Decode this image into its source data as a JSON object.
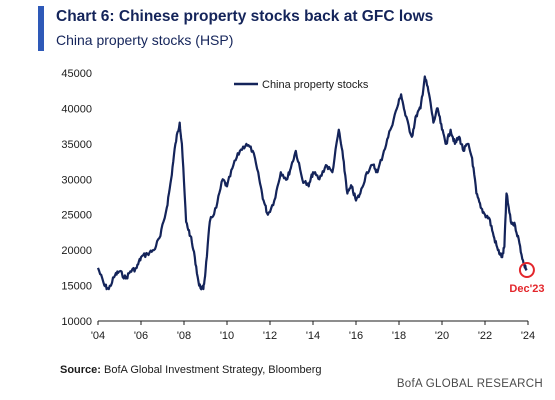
{
  "header": {
    "title": "Chart 6: Chinese property stocks back at GFC lows",
    "subtitle": "China property stocks (HSP)"
  },
  "source": {
    "label": "Source:",
    "text": "BofA Global Investment Strategy, Bloomberg"
  },
  "footer": {
    "brand": "BofA GLOBAL RESEARCH"
  },
  "colors": {
    "accent": "#2e59b8",
    "line": "#14245a",
    "annotation": "#e3262b"
  },
  "chart_data": {
    "type": "line",
    "title": "Chart 6: Chinese property stocks back at GFC lows",
    "subtitle": "China property stocks (HSP)",
    "xlabel": "",
    "ylabel": "",
    "x_tick_labels": [
      "'04",
      "'06",
      "'08",
      "'10",
      "'12",
      "'14",
      "'16",
      "'18",
      "'20",
      "'22",
      "'24"
    ],
    "x_tick_years": [
      2004,
      2006,
      2008,
      2010,
      2012,
      2014,
      2016,
      2018,
      2020,
      2022,
      2024
    ],
    "y_ticks": [
      10000,
      15000,
      20000,
      25000,
      30000,
      35000,
      40000,
      45000
    ],
    "y_tick_labels": [
      "10000",
      "15000",
      "20000",
      "25000",
      "30000",
      "35000",
      "40000",
      "45000"
    ],
    "xlim": [
      2004,
      2024
    ],
    "ylim": [
      10000,
      45000
    ],
    "grid": false,
    "legend_position": "top-center",
    "series": [
      {
        "name": "China property stocks",
        "color": "#14245a",
        "x": [
          2004.0,
          2004.3,
          2004.5,
          2004.8,
          2005.0,
          2005.3,
          2005.5,
          2005.8,
          2006.0,
          2006.3,
          2006.6,
          2006.9,
          2007.2,
          2007.4,
          2007.6,
          2007.8,
          2007.9,
          2008.1,
          2008.3,
          2008.5,
          2008.7,
          2008.9,
          2009.0,
          2009.2,
          2009.5,
          2009.8,
          2010.0,
          2010.3,
          2010.6,
          2010.9,
          2011.2,
          2011.5,
          2011.7,
          2011.9,
          2012.2,
          2012.5,
          2012.8,
          2013.0,
          2013.2,
          2013.5,
          2013.8,
          2014.0,
          2014.3,
          2014.6,
          2014.9,
          2015.2,
          2015.4,
          2015.6,
          2015.8,
          2016.0,
          2016.2,
          2016.5,
          2016.8,
          2017.0,
          2017.3,
          2017.6,
          2017.9,
          2018.1,
          2018.3,
          2018.6,
          2018.8,
          2019.0,
          2019.2,
          2019.4,
          2019.6,
          2019.8,
          2020.0,
          2020.2,
          2020.4,
          2020.6,
          2020.8,
          2021.0,
          2021.2,
          2021.4,
          2021.6,
          2021.8,
          2022.0,
          2022.2,
          2022.4,
          2022.6,
          2022.8,
          2022.9,
          2023.0,
          2023.2,
          2023.4,
          2023.6,
          2023.8,
          2023.95
        ],
        "values": [
          17500,
          15000,
          14500,
          16500,
          17000,
          16000,
          17000,
          17500,
          19000,
          19500,
          20000,
          22000,
          26000,
          30000,
          35000,
          38000,
          35000,
          24000,
          22000,
          19000,
          15000,
          14500,
          17000,
          24000,
          26000,
          30000,
          29000,
          32000,
          34000,
          35000,
          34000,
          30000,
          27000,
          25000,
          27000,
          31000,
          30000,
          32000,
          34000,
          30000,
          29000,
          31000,
          30000,
          32000,
          31000,
          37000,
          33000,
          28000,
          29000,
          27000,
          28000,
          31000,
          32000,
          31000,
          34000,
          37000,
          40000,
          42000,
          39000,
          36000,
          39000,
          40000,
          44500,
          42000,
          38000,
          40000,
          37000,
          35000,
          37000,
          35000,
          36000,
          34000,
          35000,
          33000,
          28000,
          26000,
          25000,
          24500,
          22000,
          20000,
          19000,
          20500,
          28000,
          24000,
          23500,
          21000,
          18000,
          17200
        ]
      }
    ],
    "annotations": [
      {
        "label": "Dec'23",
        "x": 2023.95,
        "y": 17200,
        "marker": "circle",
        "color": "#e3262b"
      }
    ]
  }
}
